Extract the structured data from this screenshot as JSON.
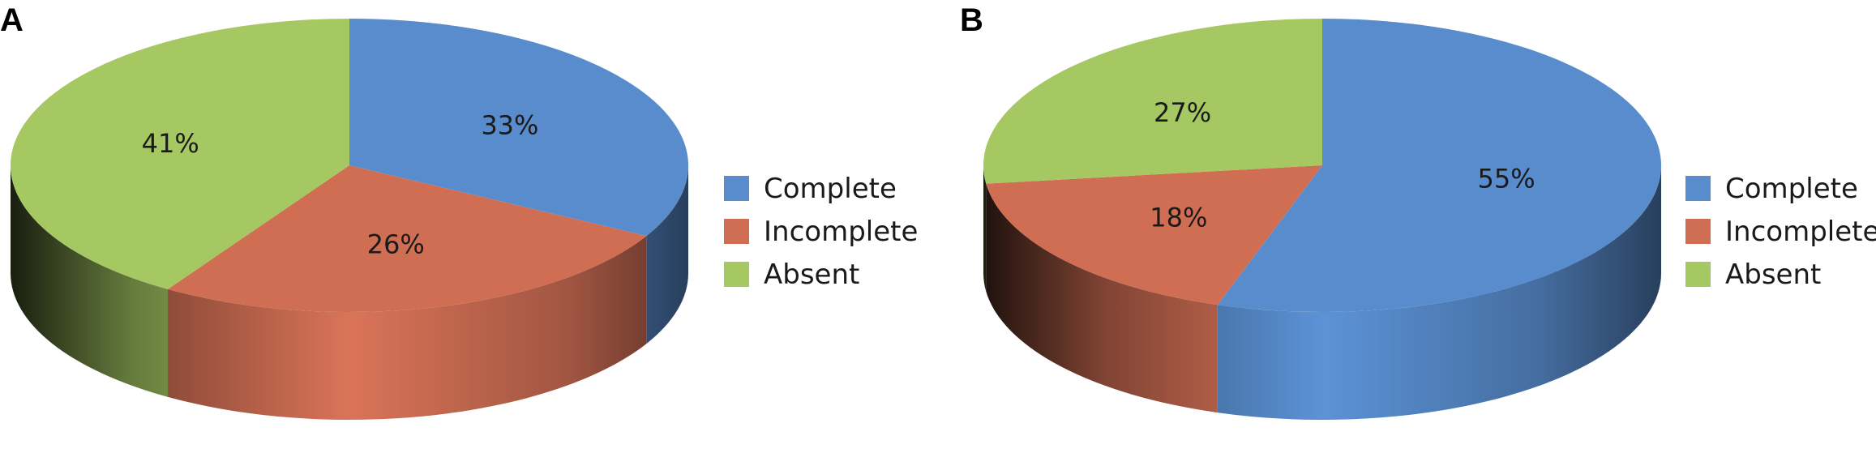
{
  "chart_data": [
    {
      "type": "pie",
      "panel_label": "A",
      "categories": [
        "Complete",
        "Incomplete",
        "Absent"
      ],
      "values": [
        33,
        26,
        41
      ],
      "value_labels": [
        "33%",
        "26%",
        "41%"
      ],
      "colors": [
        "#588ccd",
        "#d06e54",
        "#a5c862"
      ],
      "legend": {
        "entries": [
          "Complete",
          "Incomplete",
          "Absent"
        ],
        "placement": "right"
      },
      "style": "3d"
    },
    {
      "type": "pie",
      "panel_label": "B",
      "categories": [
        "Complete",
        "Incomplete",
        "Absent"
      ],
      "values": [
        55,
        18,
        27
      ],
      "value_labels": [
        "55%",
        "18%",
        "27%"
      ],
      "colors": [
        "#588ccd",
        "#d06e54",
        "#a5c862"
      ],
      "legend": {
        "entries": [
          "Complete",
          "Incomplete",
          "Absent"
        ],
        "placement": "right"
      },
      "style": "3d"
    }
  ]
}
